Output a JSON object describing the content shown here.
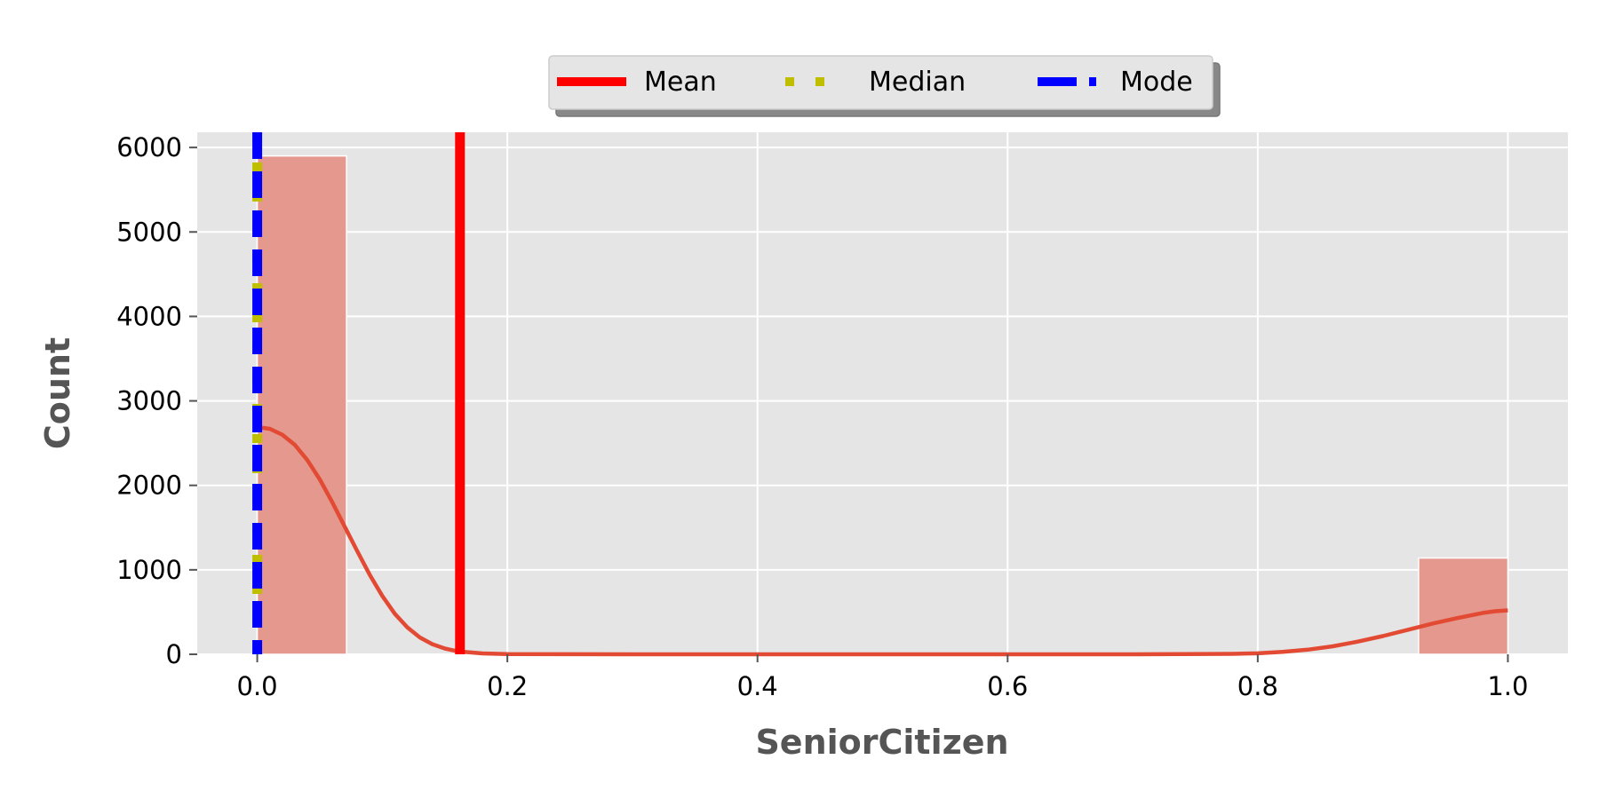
{
  "chart_data": {
    "type": "bar",
    "title": "",
    "xlabel": "SeniorCitizen",
    "ylabel": "Count",
    "xlim": [
      -0.048,
      1.048
    ],
    "ylim": [
      0,
      6180
    ],
    "x_ticks": [
      0.0,
      0.2,
      0.4,
      0.6,
      0.8,
      1.0
    ],
    "x_tick_labels": [
      "0.0",
      "0.2",
      "0.4",
      "0.6",
      "0.8",
      "1.0"
    ],
    "y_ticks": [
      0,
      1000,
      2000,
      3000,
      4000,
      5000,
      6000
    ],
    "y_tick_labels": [
      "0",
      "1000",
      "2000",
      "3000",
      "4000",
      "5000",
      "6000"
    ],
    "grid": true,
    "legend_position": "top-center",
    "bins": [
      {
        "x_start": 0.0,
        "x_end": 0.0714,
        "count": 5900
      },
      {
        "x_start": 0.9286,
        "x_end": 1.0,
        "count": 1140
      }
    ],
    "bar_color": "#e5988d",
    "kde": {
      "color": "#e24a33",
      "points": [
        [
          0.0,
          2690
        ],
        [
          0.01,
          2670
        ],
        [
          0.02,
          2600
        ],
        [
          0.03,
          2480
        ],
        [
          0.04,
          2300
        ],
        [
          0.05,
          2070
        ],
        [
          0.06,
          1800
        ],
        [
          0.07,
          1510
        ],
        [
          0.08,
          1220
        ],
        [
          0.09,
          940
        ],
        [
          0.1,
          690
        ],
        [
          0.11,
          480
        ],
        [
          0.12,
          320
        ],
        [
          0.13,
          200
        ],
        [
          0.14,
          120
        ],
        [
          0.15,
          68
        ],
        [
          0.16,
          36
        ],
        [
          0.18,
          10
        ],
        [
          0.2,
          3
        ],
        [
          0.3,
          0
        ],
        [
          0.7,
          0
        ],
        [
          0.78,
          5
        ],
        [
          0.8,
          12
        ],
        [
          0.82,
          28
        ],
        [
          0.84,
          55
        ],
        [
          0.86,
          95
        ],
        [
          0.88,
          150
        ],
        [
          0.9,
          215
        ],
        [
          0.92,
          290
        ],
        [
          0.94,
          365
        ],
        [
          0.96,
          430
        ],
        [
          0.98,
          490
        ],
        [
          0.99,
          510
        ],
        [
          1.0,
          520
        ]
      ]
    },
    "reference_lines": [
      {
        "name": "Mean",
        "x": 0.1621,
        "color": "#ff0000",
        "style": "solid"
      },
      {
        "name": "Median",
        "x": 0.0,
        "color": "#bfbf00",
        "style": "dotted"
      },
      {
        "name": "Mode",
        "x": 0.0,
        "color": "#0000ff",
        "style": "dashed"
      }
    ],
    "legend": [
      "Mean",
      "Median",
      "Mode"
    ]
  }
}
